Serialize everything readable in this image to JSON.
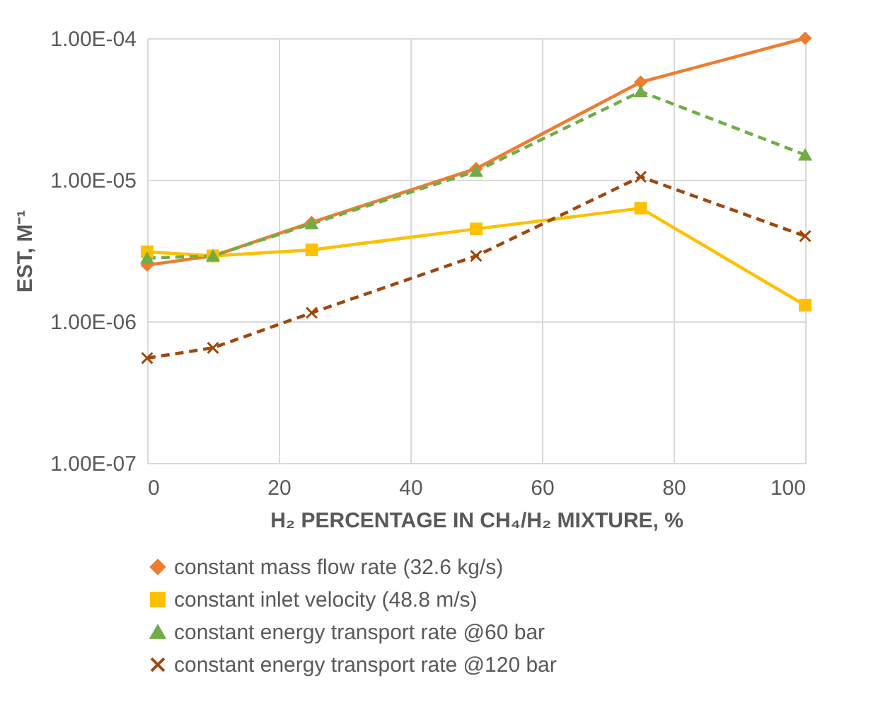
{
  "chart_data": {
    "type": "line",
    "xlabel": "H₂ PERCENTAGE IN CH₄/H₂ MIXTURE, %",
    "ylabel": "EST, M⁻¹",
    "x": [
      0,
      10,
      25,
      50,
      75,
      100
    ],
    "series": [
      {
        "name": "constant mass flow rate (32.6 kg/s)",
        "color": "#ed7d31",
        "marker": "diamond",
        "line_style": "solid",
        "values": [
          2.5e-06,
          2.9e-06,
          5e-06,
          1.2e-05,
          4.9e-05,
          0.0001
        ]
      },
      {
        "name": "constant inlet velocity (48.8 m/s)",
        "color": "#ffc000",
        "marker": "square",
        "line_style": "solid",
        "values": [
          3.1e-06,
          2.9e-06,
          3.2e-06,
          4.5e-06,
          6.3e-06,
          1.3e-06
        ]
      },
      {
        "name": "constant energy transport rate @60 bar",
        "color": "#70ad47",
        "marker": "triangle",
        "line_style": "dashed",
        "values": [
          2.8e-06,
          2.9e-06,
          4.9e-06,
          1.15e-05,
          4.2e-05,
          1.5e-05
        ]
      },
      {
        "name": "constant energy transport rate @120 bar",
        "color": "#9e480e",
        "marker": "cross",
        "line_style": "dashed",
        "values": [
          5.5e-07,
          6.5e-07,
          1.15e-06,
          2.9e-06,
          1.05e-05,
          4e-06
        ]
      }
    ],
    "log": "y",
    "xlim": [
      0,
      100
    ],
    "xticks": [
      0,
      20,
      40,
      60,
      80,
      100
    ],
    "ylim": [
      1e-07,
      0.0001
    ],
    "yticks": [
      {
        "value": 1e-07,
        "label": "1.00E-07"
      },
      {
        "value": 1e-06,
        "label": "1.00E-06"
      },
      {
        "value": 1e-05,
        "label": "1.00E-05"
      },
      {
        "value": 0.0001,
        "label": "1.00E-04"
      }
    ],
    "grid": true,
    "legend": "bottom"
  }
}
